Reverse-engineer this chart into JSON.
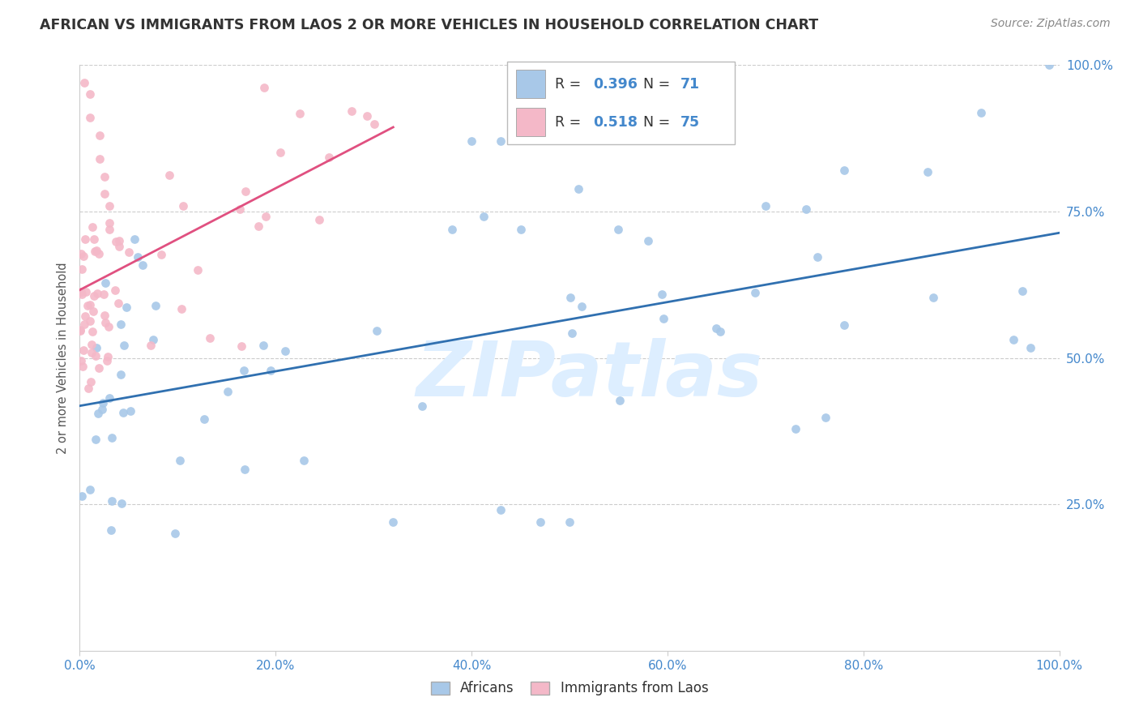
{
  "title": "AFRICAN VS IMMIGRANTS FROM LAOS 2 OR MORE VEHICLES IN HOUSEHOLD CORRELATION CHART",
  "source": "Source: ZipAtlas.com",
  "ylabel_label": "2 or more Vehicles in Household",
  "R_african": 0.396,
  "N_african": 71,
  "R_laos": 0.518,
  "N_laos": 75,
  "blue_scatter_color": "#a8c8e8",
  "pink_scatter_color": "#f4b8c8",
  "blue_line_color": "#3070b0",
  "pink_line_color": "#e05080",
  "title_color": "#333333",
  "source_color": "#888888",
  "tick_color": "#4488cc",
  "watermark_color": "#ddeeff",
  "grid_color": "#cccccc",
  "background_color": "#ffffff",
  "legend_R_N_color": "#4488cc",
  "legend_text_color": "#333333"
}
